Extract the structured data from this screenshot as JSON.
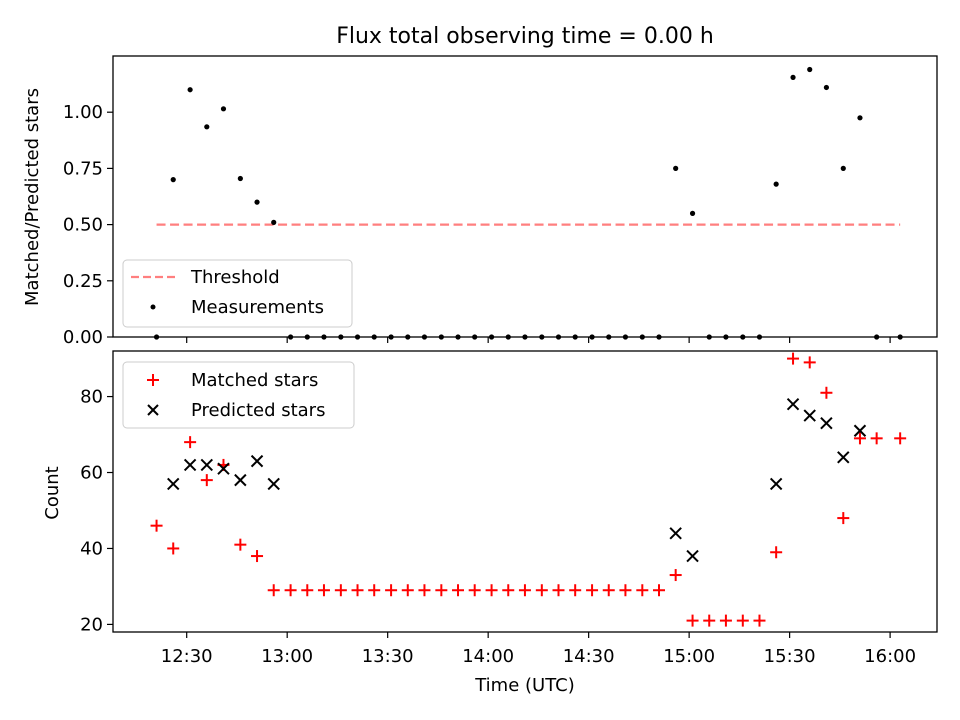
{
  "chart_data": [
    {
      "type": "scatter",
      "title": "Flux total observing time = 0.00 h",
      "ylabel": "Matched/Predicted stars",
      "xlabel": "",
      "xlim": [
        12.1333,
        16.2333
      ],
      "ylim": [
        0,
        1.25
      ],
      "yticks": [
        0.0,
        0.25,
        0.5,
        0.75,
        1.0
      ],
      "ytick_labels": [
        "0.00",
        "0.25",
        "0.50",
        "0.75",
        "1.00"
      ],
      "legend": {
        "placement": "lower-left",
        "entries": [
          {
            "label": "Threshold",
            "style": "dashed-line",
            "color": "#ff7f7f"
          },
          {
            "label": "Measurements",
            "style": "dot",
            "color": "#000000"
          }
        ]
      },
      "threshold": {
        "value": 0.5,
        "x_start": 12.35,
        "x_end": 16.05
      },
      "series": [
        {
          "name": "Measurements",
          "x": [
            12.35,
            12.433,
            12.517,
            12.6,
            12.683,
            12.767,
            12.85,
            12.933,
            13.017,
            13.1,
            13.183,
            13.267,
            13.35,
            13.433,
            13.517,
            13.6,
            13.683,
            13.767,
            13.85,
            13.933,
            14.017,
            14.1,
            14.183,
            14.267,
            14.35,
            14.433,
            14.517,
            14.6,
            14.683,
            14.767,
            14.85,
            14.933,
            15.017,
            15.1,
            15.183,
            15.267,
            15.35,
            15.433,
            15.517,
            15.6,
            15.683,
            15.767,
            15.85,
            15.933,
            16.05
          ],
          "y": [
            0.0,
            0.7,
            1.1,
            0.935,
            1.015,
            0.705,
            0.6,
            0.51,
            0.0,
            0.0,
            0.0,
            0.0,
            0.0,
            0.0,
            0.0,
            0.0,
            0.0,
            0.0,
            0.0,
            0.0,
            0.0,
            0.0,
            0.0,
            0.0,
            0.0,
            0.0,
            0.0,
            0.0,
            0.0,
            0.0,
            0.0,
            0.75,
            0.55,
            0.0,
            0.0,
            0.0,
            0.0,
            0.68,
            1.155,
            1.19,
            1.11,
            0.75,
            0.975,
            0.0,
            0.0
          ]
        }
      ]
    },
    {
      "type": "scatter",
      "title": "",
      "ylabel": "Count",
      "xlabel": "Time (UTC)",
      "xlim": [
        12.1333,
        16.2333
      ],
      "ylim": [
        18,
        92
      ],
      "yticks": [
        20,
        40,
        60,
        80
      ],
      "ytick_labels": [
        "20",
        "40",
        "60",
        "80"
      ],
      "xticks": [
        12.5,
        13.0,
        13.5,
        14.0,
        14.5,
        15.0,
        15.5,
        16.0
      ],
      "xtick_labels": [
        "12:30",
        "13:00",
        "13:30",
        "14:00",
        "14:30",
        "15:00",
        "15:30",
        "16:00"
      ],
      "legend": {
        "placement": "upper-left",
        "entries": [
          {
            "label": "Matched stars",
            "style": "plus",
            "color": "#ff0000"
          },
          {
            "label": "Predicted stars",
            "style": "x",
            "color": "#000000"
          }
        ]
      },
      "series": [
        {
          "name": "Matched stars",
          "x": [
            12.35,
            12.433,
            12.517,
            12.6,
            12.683,
            12.767,
            12.85,
            12.933,
            13.017,
            13.1,
            13.183,
            13.267,
            13.35,
            13.433,
            13.517,
            13.6,
            13.683,
            13.767,
            13.85,
            13.933,
            14.017,
            14.1,
            14.183,
            14.267,
            14.35,
            14.433,
            14.517,
            14.6,
            14.683,
            14.767,
            14.85,
            14.933,
            15.017,
            15.1,
            15.183,
            15.267,
            15.35,
            15.433,
            15.517,
            15.6,
            15.683,
            15.767,
            15.85,
            15.933,
            16.05
          ],
          "y": [
            46,
            40,
            68,
            58,
            62,
            41,
            38,
            29,
            29,
            29,
            29,
            29,
            29,
            29,
            29,
            29,
            29,
            29,
            29,
            29,
            29,
            29,
            29,
            29,
            29,
            29,
            29,
            29,
            29,
            29,
            29,
            33,
            21,
            21,
            21,
            21,
            21,
            39,
            90,
            89,
            81,
            48,
            69,
            69,
            69
          ]
        },
        {
          "name": "Predicted stars",
          "x": [
            12.433,
            12.517,
            12.6,
            12.683,
            12.767,
            12.85,
            12.933,
            14.933,
            15.017,
            15.433,
            15.517,
            15.6,
            15.683,
            15.767,
            15.85
          ],
          "y": [
            57,
            62,
            62,
            61,
            58,
            63,
            57,
            44,
            38,
            57,
            78,
            75,
            73,
            64,
            71
          ]
        }
      ]
    }
  ]
}
